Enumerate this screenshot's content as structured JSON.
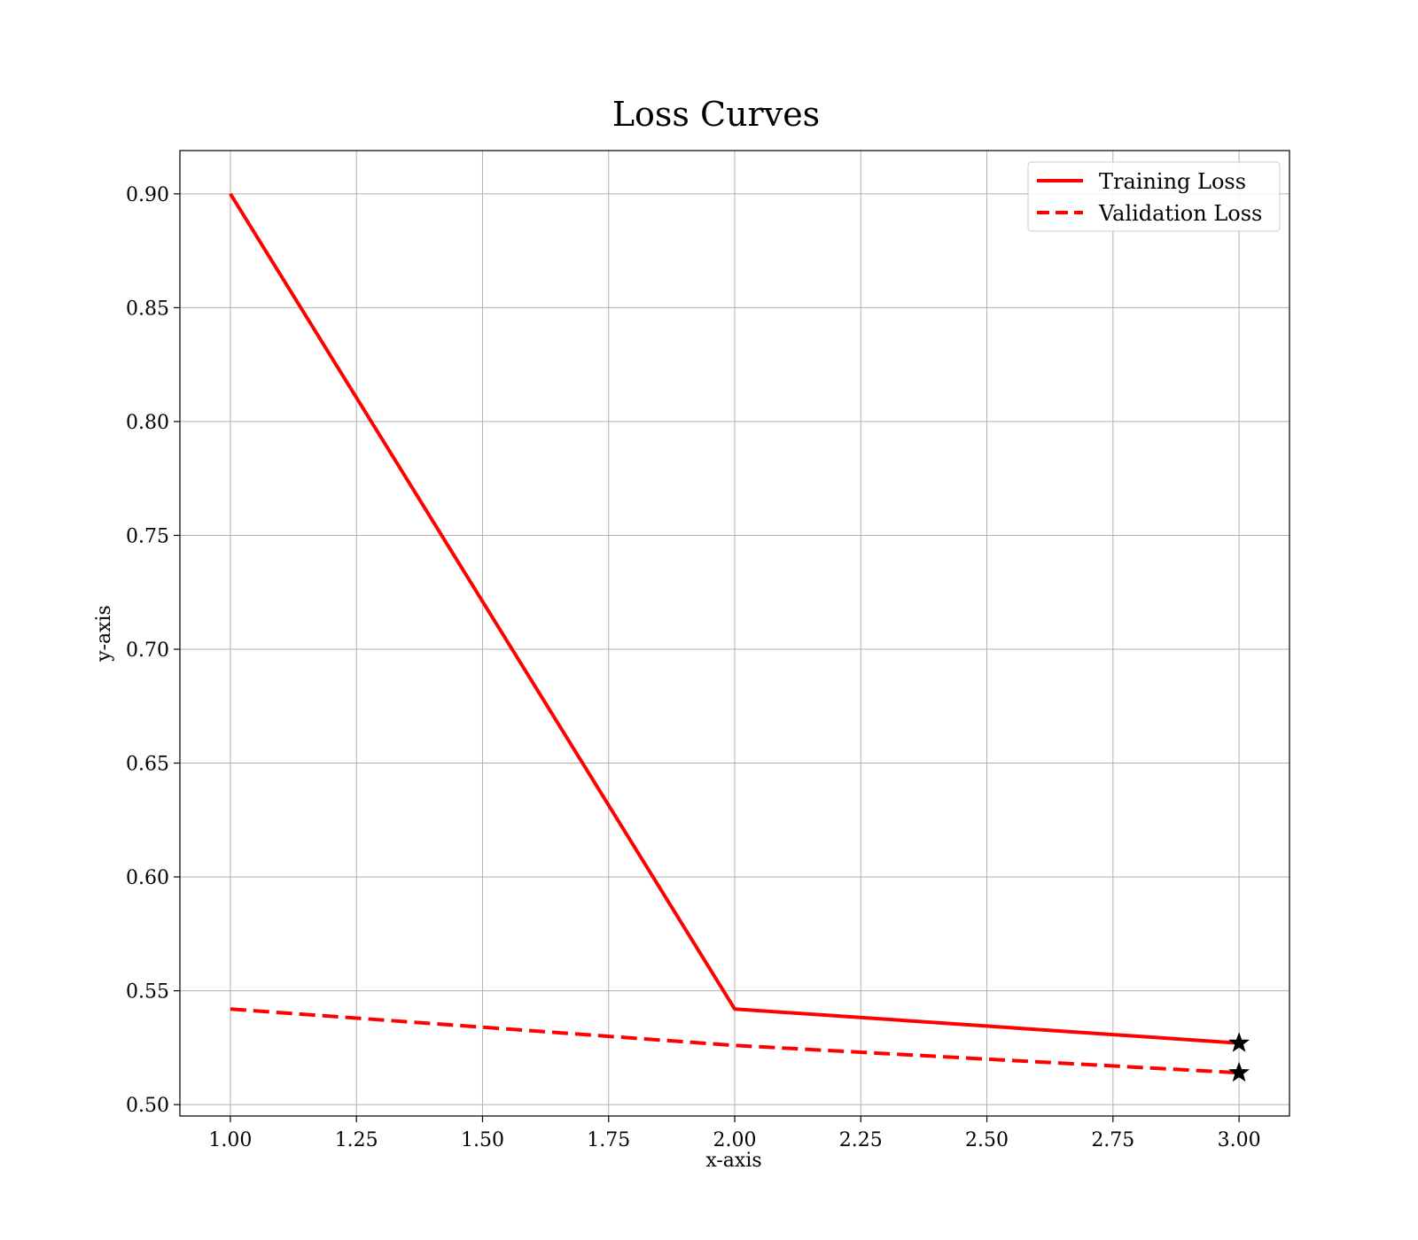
{
  "chart_data": {
    "type": "line",
    "title": "Loss Curves",
    "xlabel": "x-axis",
    "ylabel": "y-axis",
    "xlim": [
      0.9,
      3.1
    ],
    "ylim": [
      0.495,
      0.919
    ],
    "x_ticks": [
      1.0,
      1.25,
      1.5,
      1.75,
      2.0,
      2.25,
      2.5,
      2.75,
      3.0
    ],
    "x_tick_labels": [
      "1.00",
      "1.25",
      "1.50",
      "1.75",
      "2.00",
      "2.25",
      "2.50",
      "2.75",
      "3.00"
    ],
    "y_ticks": [
      0.5,
      0.55,
      0.6,
      0.65,
      0.7,
      0.75,
      0.8,
      0.85,
      0.9
    ],
    "y_tick_labels": [
      "0.50",
      "0.55",
      "0.60",
      "0.65",
      "0.70",
      "0.75",
      "0.80",
      "0.85",
      "0.90"
    ],
    "grid": true,
    "legend_position": "top-right",
    "x": [
      1,
      2,
      3
    ],
    "series": [
      {
        "name": "Training Loss",
        "values": [
          0.9,
          0.542,
          0.527
        ],
        "color": "#ff0000",
        "line_style": "solid"
      },
      {
        "name": "Validation Loss",
        "values": [
          0.542,
          0.526,
          0.514
        ],
        "color": "#ff0000",
        "line_style": "dashed"
      }
    ],
    "markers": [
      {
        "x": 3,
        "y": 0.527,
        "symbol": "star",
        "color": "#000000"
      },
      {
        "x": 3,
        "y": 0.514,
        "symbol": "star",
        "color": "#000000"
      }
    ]
  }
}
